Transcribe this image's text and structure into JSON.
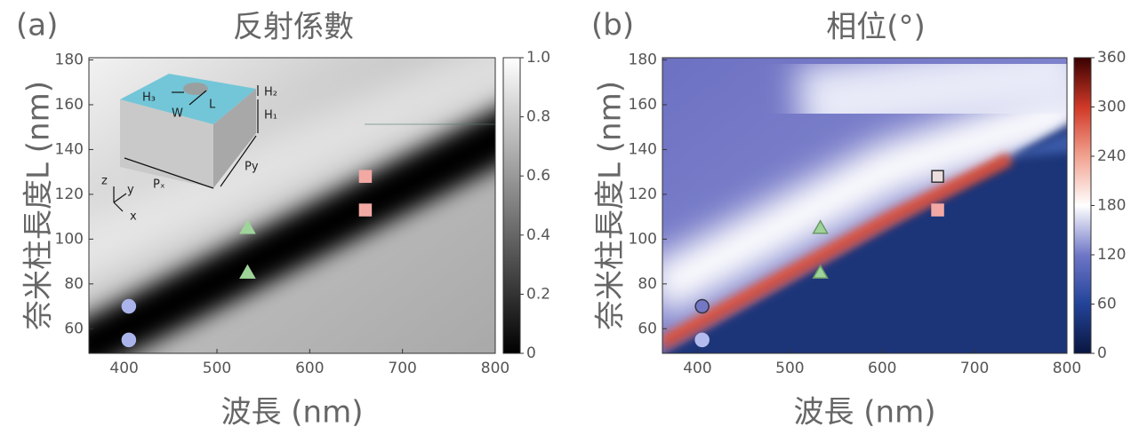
{
  "chart_data": [
    {
      "type": "heatmap",
      "panel_label": "(a)",
      "title": "反射係數",
      "x_label": "波長 (nm)",
      "y_label": "奈米柱長度L (nm)",
      "xlim": [
        362,
        800
      ],
      "xticks": [
        400,
        500,
        600,
        700,
        800
      ],
      "ylim": [
        49,
        181
      ],
      "yticks": [
        60,
        80,
        100,
        120,
        140,
        160,
        180
      ],
      "colorbar": {
        "lim": [
          0,
          1
        ],
        "ticks": [
          0,
          0.2,
          0.4,
          0.6,
          0.8,
          {
            "value": 1,
            "label": "1.0"
          }
        ]
      },
      "series": [
        {
          "marker": "circle",
          "color": "#aab4ea",
          "edgecolor": "#aab4ea",
          "x": [
            405,
            405
          ],
          "values": [
            70,
            55
          ]
        },
        {
          "marker": "triangle",
          "color": "#9fd39a",
          "edgecolor": "#9fd39a",
          "x": [
            533,
            533
          ],
          "values": [
            105,
            85
          ]
        },
        {
          "marker": "square",
          "color": "#f2a9a4",
          "edgecolor": "#f2a9a4",
          "x": [
            660,
            660
          ],
          "values": [
            128,
            113
          ]
        }
      ],
      "annotations": [
        "H₃",
        "W",
        "L",
        "H₂",
        "H₁",
        "Pₓ",
        "Py",
        "z",
        "y",
        "x"
      ]
    },
    {
      "type": "heatmap",
      "panel_label": "(b)",
      "title": "相位(°)",
      "x_label": "波長 (nm)",
      "y_label": "奈米柱長度L (nm)",
      "xlim": [
        362,
        800
      ],
      "xticks": [
        400,
        500,
        600,
        700,
        800
      ],
      "ylim": [
        49,
        181
      ],
      "yticks": [
        60,
        80,
        100,
        120,
        140,
        160,
        180
      ],
      "colorbar": {
        "lim": [
          0,
          360
        ],
        "ticks": [
          0,
          60,
          120,
          180,
          240,
          300,
          360
        ]
      },
      "series": [
        {
          "marker": "circle",
          "color": "#7478c4",
          "edgecolor": "#333344",
          "x": [
            405
          ],
          "values": [
            70
          ]
        },
        {
          "marker": "circle",
          "color": "#b4bcef",
          "edgecolor": "#b4bcef",
          "x": [
            405
          ],
          "values": [
            55
          ]
        },
        {
          "marker": "triangle",
          "color": "#9fd39a",
          "edgecolor": "#6a9a66",
          "x": [
            533,
            533
          ],
          "values": [
            105,
            85
          ]
        },
        {
          "marker": "square",
          "color": "#ecdede",
          "edgecolor": "#333333",
          "x": [
            660
          ],
          "values": [
            128
          ]
        },
        {
          "marker": "square",
          "color": "#f2a9a4",
          "edgecolor": "#f2a9a4",
          "x": [
            660
          ],
          "values": [
            113
          ]
        }
      ]
    }
  ]
}
